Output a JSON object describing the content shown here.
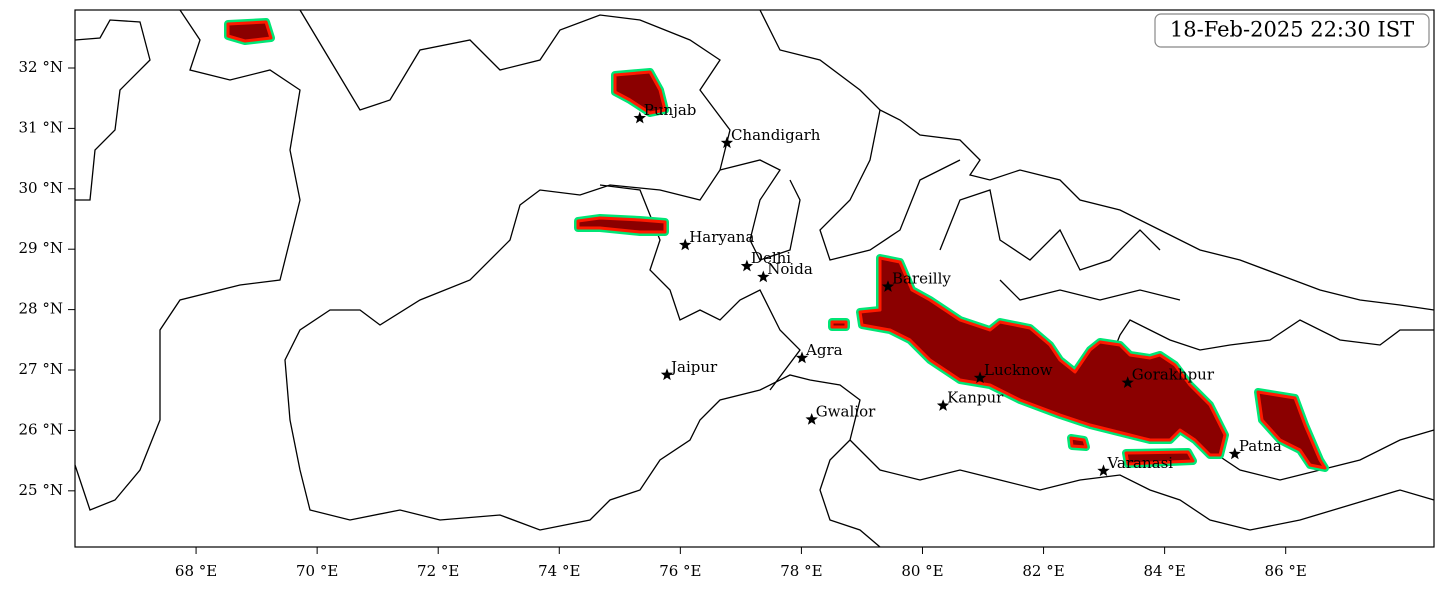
{
  "map": {
    "title": "18-Feb-2025 22:30 IST",
    "xlim": [
      66,
      88.45
    ],
    "ylim": [
      24.07,
      32.96
    ],
    "xticks": [
      {
        "value": 68,
        "label": "68 °E"
      },
      {
        "value": 70,
        "label": "70 °E"
      },
      {
        "value": 72,
        "label": "72 °E"
      },
      {
        "value": 74,
        "label": "74 °E"
      },
      {
        "value": 76,
        "label": "76 °E"
      },
      {
        "value": 78,
        "label": "78 °E"
      },
      {
        "value": 80,
        "label": "80 °E"
      },
      {
        "value": 82,
        "label": "82 °E"
      },
      {
        "value": 84,
        "label": "84 °E"
      },
      {
        "value": 86,
        "label": "86 °E"
      }
    ],
    "yticks": [
      {
        "value": 25,
        "label": "25 °N"
      },
      {
        "value": 26,
        "label": "26 °N"
      },
      {
        "value": 27,
        "label": "27 °N"
      },
      {
        "value": 28,
        "label": "28 °N"
      },
      {
        "value": 29,
        "label": "29 °N"
      },
      {
        "value": 30,
        "label": "30 °N"
      },
      {
        "value": 31,
        "label": "31 °N"
      },
      {
        "value": 32,
        "label": "32 °N"
      }
    ],
    "cities": [
      {
        "name": "Punjab",
        "lon": 75.33,
        "lat": 31.17
      },
      {
        "name": "Chandigarh",
        "lon": 76.77,
        "lat": 30.76
      },
      {
        "name": "Haryana",
        "lon": 76.08,
        "lat": 29.07
      },
      {
        "name": "Delhi",
        "lon": 77.1,
        "lat": 28.72
      },
      {
        "name": "Noida",
        "lon": 77.37,
        "lat": 28.54
      },
      {
        "name": "Bareilly",
        "lon": 79.43,
        "lat": 28.38
      },
      {
        "name": "Agra",
        "lon": 78.01,
        "lat": 27.2
      },
      {
        "name": "Jaipur",
        "lon": 75.78,
        "lat": 26.92
      },
      {
        "name": "Lucknow",
        "lon": 80.95,
        "lat": 26.87
      },
      {
        "name": "Gorakhpur",
        "lon": 83.39,
        "lat": 26.79
      },
      {
        "name": "Kanpur",
        "lon": 80.34,
        "lat": 26.41
      },
      {
        "name": "Gwalior",
        "lon": 78.17,
        "lat": 26.18
      },
      {
        "name": "Patna",
        "lon": 85.16,
        "lat": 25.61
      },
      {
        "name": "Varanasi",
        "lon": 82.99,
        "lat": 25.33
      }
    ]
  }
}
